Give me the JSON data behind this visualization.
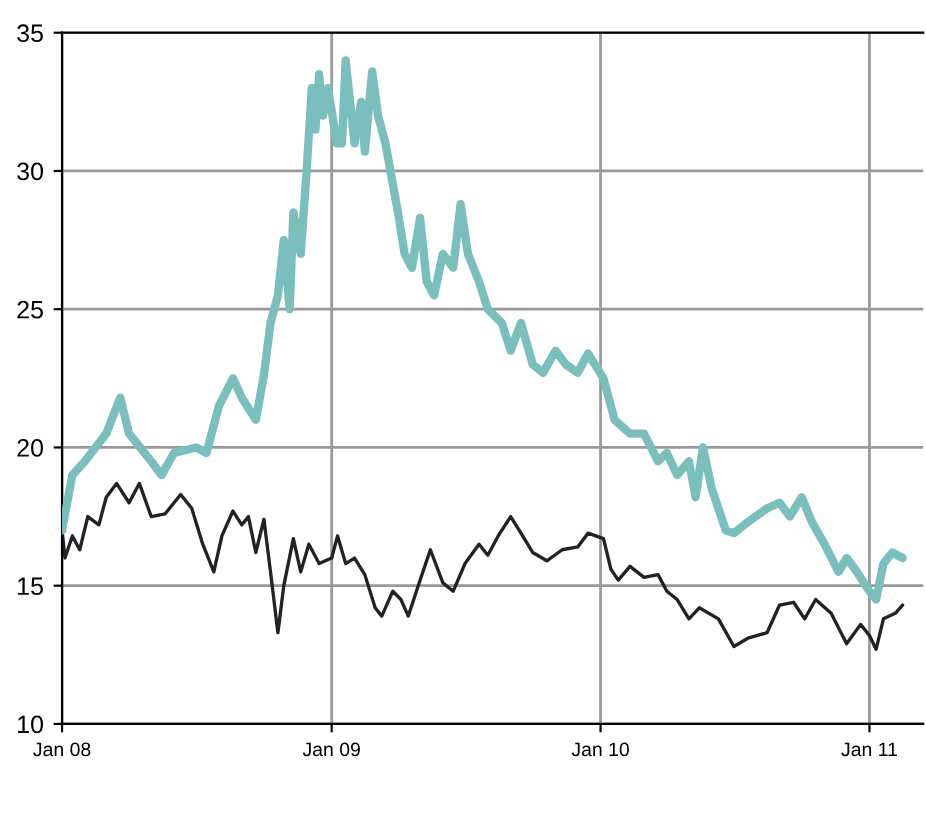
{
  "chart_data": {
    "type": "line",
    "ylim": [
      10,
      35
    ],
    "yticks": [
      10,
      15,
      20,
      25,
      30,
      35
    ],
    "xlim": [
      "2008-01-01",
      "2011-03-15"
    ],
    "xticks": [
      {
        "value": "2008-01-01",
        "label": "Jan 08"
      },
      {
        "value": "2009-01-01",
        "label": "Jan 09"
      },
      {
        "value": "2010-01-01",
        "label": "Jan 10"
      },
      {
        "value": "2011-01-01",
        "label": "Jan 11"
      }
    ],
    "grid": true,
    "series": [
      {
        "color": "#7bbfbd",
        "x": [
          "2008-01-01",
          "2008-01-15",
          "2008-02-01",
          "2008-03-01",
          "2008-03-20",
          "2008-04-01",
          "2008-05-01",
          "2008-05-15",
          "2008-06-01",
          "2008-07-01",
          "2008-07-15",
          "2008-08-01",
          "2008-08-20",
          "2008-09-01",
          "2008-09-20",
          "2008-10-01",
          "2008-10-10",
          "2008-10-20",
          "2008-10-28",
          "2008-11-05",
          "2008-11-10",
          "2008-11-20",
          "2008-11-28",
          "2008-12-05",
          "2008-12-10",
          "2008-12-15",
          "2008-12-20",
          "2008-12-27",
          "2009-01-08",
          "2009-01-15",
          "2009-01-20",
          "2009-02-01",
          "2009-02-10",
          "2009-02-15",
          "2009-02-25",
          "2009-03-05",
          "2009-03-15",
          "2009-04-01",
          "2009-04-10",
          "2009-04-20",
          "2009-05-01",
          "2009-05-10",
          "2009-05-20",
          "2009-06-01",
          "2009-06-15",
          "2009-06-25",
          "2009-07-05",
          "2009-07-20",
          "2009-08-01",
          "2009-08-20",
          "2009-09-01",
          "2009-09-15",
          "2009-10-01",
          "2009-10-15",
          "2009-11-01",
          "2009-11-15",
          "2009-12-01",
          "2009-12-15",
          "2010-01-05",
          "2010-01-20",
          "2010-02-10",
          "2010-03-01",
          "2010-03-20",
          "2010-04-01",
          "2010-04-15",
          "2010-05-01",
          "2010-05-10",
          "2010-05-20",
          "2010-06-01",
          "2010-06-20",
          "2010-07-01",
          "2010-07-20",
          "2010-08-15",
          "2010-09-01",
          "2010-09-15",
          "2010-10-01",
          "2010-10-15",
          "2010-11-01",
          "2010-11-20",
          "2010-12-01",
          "2010-12-15",
          "2011-01-01",
          "2011-01-10",
          "2011-01-20",
          "2011-02-01",
          "2011-02-15"
        ],
        "values": [
          17,
          19,
          19.5,
          20.5,
          21.8,
          20.5,
          19.5,
          19,
          19.8,
          20,
          19.8,
          21.5,
          22.5,
          21.8,
          21,
          22.6,
          24.5,
          25.5,
          27.5,
          25,
          28.5,
          27,
          30,
          33,
          31.5,
          33.5,
          32,
          33,
          31,
          31,
          34,
          31,
          32.5,
          30.7,
          33.6,
          32,
          31,
          28.5,
          27,
          26.5,
          28.3,
          26,
          25.5,
          27,
          26.5,
          28.8,
          27,
          26,
          25,
          24.5,
          23.5,
          24.5,
          23,
          22.7,
          23.5,
          23,
          22.7,
          23.4,
          22.5,
          21,
          20.5,
          20.5,
          19.5,
          19.8,
          19,
          19.5,
          18.2,
          20,
          18.5,
          17,
          16.9,
          17.3,
          17.8,
          18,
          17.5,
          18.2,
          17.3,
          16.5,
          15.5,
          16,
          15.5,
          14.8,
          14.5,
          15.8,
          16.2,
          16
        ]
      },
      {
        "color": "#222222",
        "x": [
          "2008-01-01",
          "2008-01-05",
          "2008-01-15",
          "2008-01-25",
          "2008-02-05",
          "2008-02-20",
          "2008-03-01",
          "2008-03-15",
          "2008-04-01",
          "2008-04-15",
          "2008-05-01",
          "2008-05-20",
          "2008-06-10",
          "2008-06-25",
          "2008-07-10",
          "2008-07-25",
          "2008-08-05",
          "2008-08-20",
          "2008-09-01",
          "2008-09-10",
          "2008-09-20",
          "2008-10-01",
          "2008-10-10",
          "2008-10-20",
          "2008-10-28",
          "2008-11-10",
          "2008-11-20",
          "2008-12-01",
          "2008-12-15",
          "2009-01-01",
          "2009-01-09",
          "2009-01-20",
          "2009-02-01",
          "2009-02-15",
          "2009-03-01",
          "2009-03-10",
          "2009-03-25",
          "2009-04-05",
          "2009-04-15",
          "2009-05-01",
          "2009-05-15",
          "2009-06-01",
          "2009-06-15",
          "2009-07-01",
          "2009-07-20",
          "2009-08-01",
          "2009-08-15",
          "2009-09-01",
          "2009-09-15",
          "2009-10-01",
          "2009-10-20",
          "2009-11-10",
          "2009-12-01",
          "2009-12-15",
          "2010-01-05",
          "2010-01-15",
          "2010-01-25",
          "2010-02-10",
          "2010-03-01",
          "2010-03-20",
          "2010-04-01",
          "2010-04-15",
          "2010-05-01",
          "2010-05-15",
          "2010-06-10",
          "2010-07-01",
          "2010-07-20",
          "2010-08-15",
          "2010-09-01",
          "2010-09-20",
          "2010-10-05",
          "2010-10-20",
          "2010-11-10",
          "2010-12-01",
          "2010-12-20",
          "2011-01-01",
          "2011-01-10",
          "2011-01-20",
          "2011-02-05",
          "2011-02-15"
        ],
        "values": [
          17,
          16,
          16.8,
          16.3,
          17.5,
          17.2,
          18.2,
          18.7,
          18,
          18.7,
          17.5,
          17.6,
          18.3,
          17.8,
          16.5,
          15.5,
          16.8,
          17.7,
          17.2,
          17.5,
          16.2,
          17.4,
          15.5,
          13.3,
          15,
          16.7,
          15.5,
          16.5,
          15.8,
          16,
          16.8,
          15.8,
          16,
          15.4,
          14.2,
          13.9,
          14.8,
          14.5,
          13.9,
          15.2,
          16.3,
          15.1,
          14.8,
          15.8,
          16.5,
          16.1,
          16.8,
          17.5,
          16.9,
          16.2,
          15.9,
          16.3,
          16.4,
          16.9,
          16.7,
          15.6,
          15.2,
          15.7,
          15.3,
          15.4,
          14.8,
          14.5,
          13.8,
          14.2,
          13.8,
          12.8,
          13.1,
          13.3,
          14.3,
          14.4,
          13.8,
          14.5,
          14,
          12.9,
          13.6,
          13.2,
          12.7,
          13.8,
          14,
          14.3
        ]
      }
    ]
  }
}
